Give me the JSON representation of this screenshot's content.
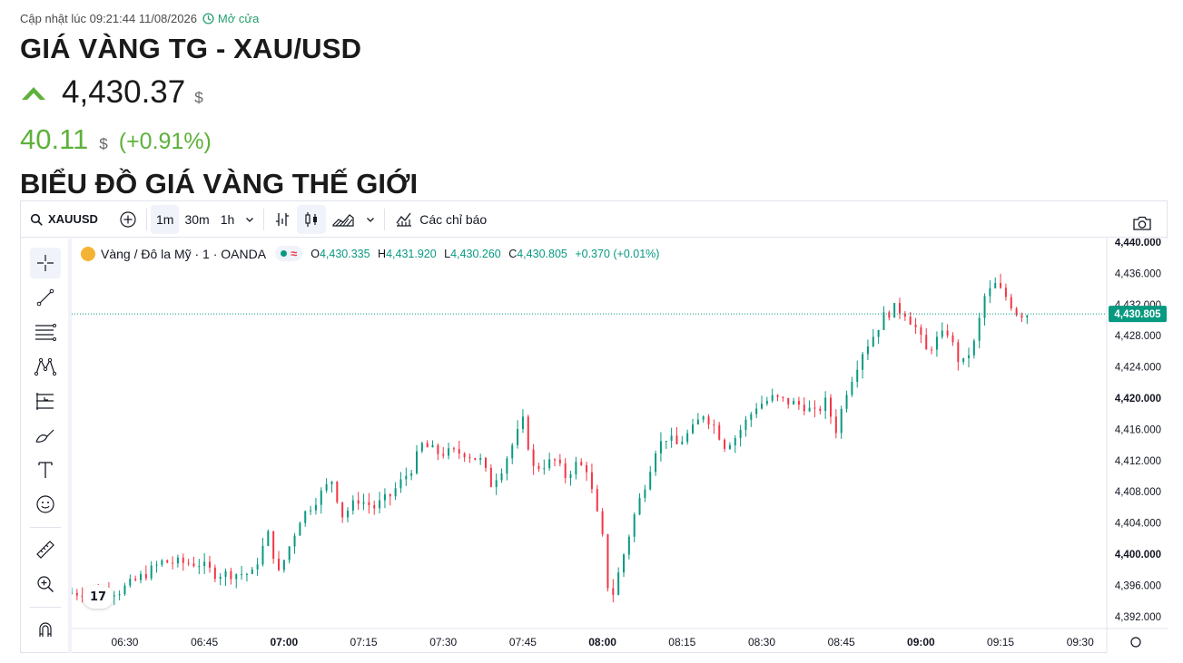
{
  "header": {
    "updated_label": "Cập nhật lúc 09:21:44 11/08/2026",
    "status_label": "Mở cửa",
    "title": "GIÁ VÀNG TG - XAU/USD",
    "price": "4,430.37",
    "price_currency": "$",
    "change": "40.11",
    "change_currency": "$",
    "change_percent": "(+0.91%)",
    "direction_icon": "up-arrow-icon",
    "up_color": "#5db13a"
  },
  "section_title": "BIỂU ĐỒ GIÁ VÀNG THẾ GIỚI",
  "toolbar": {
    "symbol": "XAUUSD",
    "intervals": [
      "1m",
      "30m",
      "1h"
    ],
    "active_interval": "1m",
    "indicators_label": "Các chỉ báo"
  },
  "legend": {
    "name": "Vàng / Đô la Mỹ · 1 · OANDA",
    "o_label": "O",
    "o_value": "4,430.335",
    "h_label": "H",
    "h_value": "4,431.920",
    "l_label": "L",
    "l_value": "4,430.260",
    "c_label": "C",
    "c_value": "4,430.805",
    "change": "+0.370 (+0.01%)"
  },
  "colors": {
    "up": "#089981",
    "down": "#f23645",
    "accent": "#2962ff"
  },
  "chart_data": {
    "type": "candlestick",
    "interval_minutes": 1,
    "last_price": 4430.805,
    "last_price_label": "4,430.805",
    "ylim": [
      4390,
      4440
    ],
    "yticks": [
      4440,
      4436,
      4432,
      4428,
      4424,
      4420,
      4416,
      4412,
      4408,
      4404,
      4400,
      4396,
      4392
    ],
    "ytick_labels": [
      "4,440.000",
      "4,436.000",
      "4,432.000",
      "4,428.000",
      "4,424.000",
      "4,420.000",
      "4,416.000",
      "4,412.000",
      "4,408.000",
      "4,404.000",
      "4,400.000",
      "4,396.000",
      "4,392.000"
    ],
    "xlim": [
      "06:20",
      "09:35"
    ],
    "xticks": [
      "06:30",
      "06:45",
      "07:00",
      "07:15",
      "07:30",
      "07:45",
      "08:00",
      "08:15",
      "08:30",
      "08:45",
      "09:00",
      "09:15",
      "09:30"
    ],
    "xticks_bold": [
      "07:00",
      "08:00",
      "09:00"
    ],
    "segments": [
      [
        "06:20",
        4395.0
      ],
      [
        "06:30",
        4395.3
      ],
      [
        "06:35",
        4397.5
      ],
      [
        "06:38",
        4399.0
      ],
      [
        "06:45",
        4398.8
      ],
      [
        "06:48",
        4397.5
      ],
      [
        "06:55",
        4397.5
      ],
      [
        "06:58",
        4402.5
      ],
      [
        "07:00",
        4397.5
      ],
      [
        "07:02",
        4401.0
      ],
      [
        "07:04",
        4404.5
      ],
      [
        "07:07",
        4407.0
      ],
      [
        "07:10",
        4409.5
      ],
      [
        "07:12",
        4405.0
      ],
      [
        "07:15",
        4407.0
      ],
      [
        "07:18",
        4406.0
      ],
      [
        "07:21",
        4407.5
      ],
      [
        "07:25",
        4411.0
      ],
      [
        "07:27",
        4414.0
      ],
      [
        "07:30",
        4413.0
      ],
      [
        "07:35",
        4413.0
      ],
      [
        "07:38",
        4412.0
      ],
      [
        "07:40",
        4409.0
      ],
      [
        "07:42",
        4411.0
      ],
      [
        "07:44",
        4414.0
      ],
      [
        "07:46",
        4417.0
      ],
      [
        "07:47",
        4414.0
      ],
      [
        "07:48",
        4411.0
      ],
      [
        "07:52",
        4412.0
      ],
      [
        "07:54",
        4410.0
      ],
      [
        "07:56",
        4411.5
      ],
      [
        "07:58",
        4411.0
      ],
      [
        "08:00",
        4405.0
      ],
      [
        "08:01",
        4402.0
      ],
      [
        "08:02",
        4396.0
      ],
      [
        "08:03",
        4395.0
      ],
      [
        "08:05",
        4400.0
      ],
      [
        "08:07",
        4405.0
      ],
      [
        "08:09",
        4409.0
      ],
      [
        "08:11",
        4413.5
      ],
      [
        "08:13",
        4415.0
      ],
      [
        "08:15",
        4414.0
      ],
      [
        "08:18",
        4416.0
      ],
      [
        "08:20",
        4418.0
      ],
      [
        "08:22",
        4416.5
      ],
      [
        "08:24",
        4414.0
      ],
      [
        "08:26",
        4415.0
      ],
      [
        "08:28",
        4417.0
      ],
      [
        "08:30",
        4419.0
      ],
      [
        "08:33",
        4420.0
      ],
      [
        "08:36",
        4419.5
      ],
      [
        "08:39",
        4419.0
      ],
      [
        "08:41",
        4418.0
      ],
      [
        "08:43",
        4419.5
      ],
      [
        "08:45",
        4416.0
      ],
      [
        "08:47",
        4421.0
      ],
      [
        "08:50",
        4426.0
      ],
      [
        "08:52",
        4428.0
      ],
      [
        "08:54",
        4430.5
      ],
      [
        "08:56",
        4431.5
      ],
      [
        "08:58",
        4431.0
      ],
      [
        "09:00",
        4429.0
      ],
      [
        "09:02",
        4426.0
      ],
      [
        "09:04",
        4427.5
      ],
      [
        "09:06",
        4428.5
      ],
      [
        "09:08",
        4425.0
      ],
      [
        "09:09",
        4424.5
      ],
      [
        "09:11",
        4427.0
      ],
      [
        "09:13",
        4433.0
      ],
      [
        "09:15",
        4434.5
      ],
      [
        "09:17",
        4433.0
      ],
      [
        "09:19",
        4431.0
      ],
      [
        "09:20",
        4430.805
      ]
    ]
  }
}
